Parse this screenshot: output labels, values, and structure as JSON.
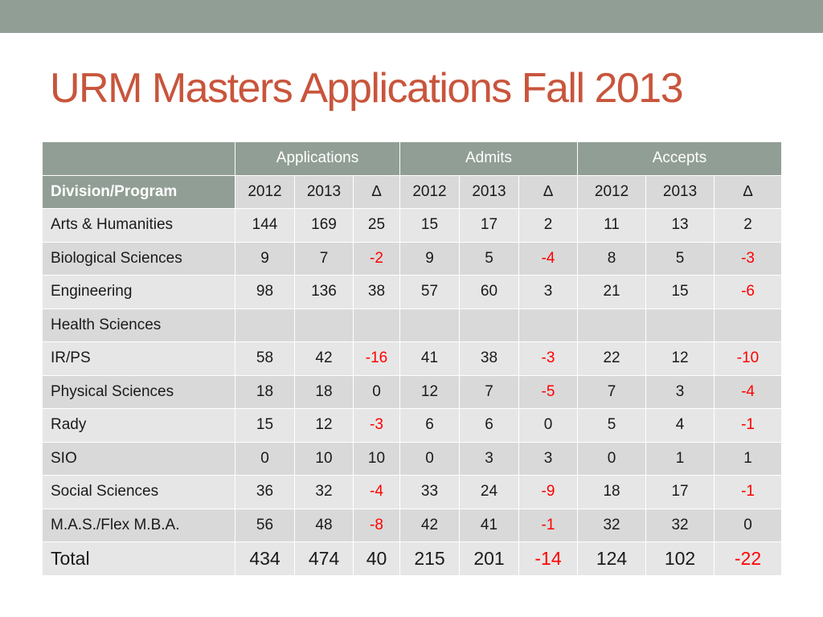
{
  "slide": {
    "title": "URM Masters Applications Fall 2013"
  },
  "table": {
    "corner": "",
    "groups": [
      "Applications",
      "Admits",
      "Accepts"
    ],
    "label_header": "Division/Program",
    "sub_headers": [
      "2012",
      "2013",
      "∆",
      "2012",
      "2013",
      "∆",
      "2012",
      "2013",
      "∆"
    ],
    "rows": [
      {
        "label": "Arts & Humanities",
        "values": [
          "144",
          "169",
          "25",
          "15",
          "17",
          "2",
          "11",
          "13",
          "2"
        ]
      },
      {
        "label": "Biological Sciences",
        "values": [
          "9",
          "7",
          "-2",
          "9",
          "5",
          "-4",
          "8",
          "5",
          "-3"
        ]
      },
      {
        "label": "Engineering",
        "values": [
          "98",
          "136",
          "38",
          "57",
          "60",
          "3",
          "21",
          "15",
          "-6"
        ]
      },
      {
        "label": "Health Sciences",
        "values": [
          "",
          "",
          "",
          "",
          "",
          "",
          "",
          "",
          ""
        ]
      },
      {
        "label": "IR/PS",
        "values": [
          "58",
          "42",
          "-16",
          "41",
          "38",
          "-3",
          "22",
          "12",
          "-10"
        ]
      },
      {
        "label": "Physical Sciences",
        "values": [
          "18",
          "18",
          "0",
          "12",
          "7",
          "-5",
          "7",
          "3",
          "-4"
        ]
      },
      {
        "label": "Rady",
        "values": [
          "15",
          "12",
          "-3",
          "6",
          "6",
          "0",
          "5",
          "4",
          "-1"
        ]
      },
      {
        "label": "SIO",
        "values": [
          "0",
          "10",
          "10",
          "0",
          "3",
          "3",
          "0",
          "1",
          "1"
        ]
      },
      {
        "label": "Social Sciences",
        "values": [
          "36",
          "32",
          "-4",
          "33",
          "24",
          "-9",
          "18",
          "17",
          "-1"
        ]
      },
      {
        "label": "M.A.S./Flex M.B.A.",
        "values": [
          "56",
          "48",
          "-8",
          "42",
          "41",
          "-1",
          "32",
          "32",
          "0"
        ]
      }
    ],
    "total": {
      "label": "Total",
      "values": [
        "434",
        "474",
        "40",
        "215",
        "201",
        "-14",
        "124",
        "102",
        "-22"
      ]
    }
  },
  "colors": {
    "title": "#c8553c",
    "header_bg": "#919e95",
    "row_light": "#e6e6e6",
    "row_dark": "#d9d9d9",
    "negative": "#ff0000"
  }
}
